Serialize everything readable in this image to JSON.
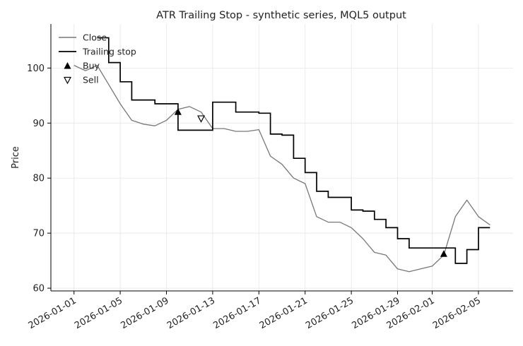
{
  "chart_data": {
    "type": "line",
    "title": "ATR Trailing Stop - synthetic series, MQL5 output",
    "xlabel": "",
    "ylabel": "Price",
    "xlim": [
      "2025-12-30",
      "2026-02-08"
    ],
    "ylim": [
      59.5,
      108
    ],
    "yticks": [
      60,
      70,
      80,
      90,
      100
    ],
    "xticks": [
      "2026-01-01",
      "2026-01-05",
      "2026-01-09",
      "2026-01-13",
      "2026-01-17",
      "2026-01-21",
      "2026-01-25",
      "2026-01-29",
      "2026-02-01",
      "2026-02-05"
    ],
    "grid": true,
    "legend_position": "top-left",
    "series": [
      {
        "name": "Close",
        "color": "#777777",
        "x": [
          "2026-01-01",
          "2026-01-02",
          "2026-01-03",
          "2026-01-04",
          "2026-01-05",
          "2026-01-06",
          "2026-01-07",
          "2026-01-08",
          "2026-01-09",
          "2026-01-10",
          "2026-01-11",
          "2026-01-12",
          "2026-01-13",
          "2026-01-14",
          "2026-01-15",
          "2026-01-16",
          "2026-01-17",
          "2026-01-18",
          "2026-01-19",
          "2026-01-20",
          "2026-01-21",
          "2026-01-22",
          "2026-01-23",
          "2026-01-24",
          "2026-01-25",
          "2026-01-26",
          "2026-01-27",
          "2026-01-28",
          "2026-01-29",
          "2026-01-30",
          "2026-01-31",
          "2026-02-01",
          "2026-02-02",
          "2026-02-03",
          "2026-02-04",
          "2026-02-05",
          "2026-02-06"
        ],
        "values": [
          100.5,
          99.5,
          100.5,
          97,
          93.5,
          90.5,
          89.8,
          89.5,
          90.5,
          92.5,
          93,
          92,
          89,
          89,
          88.5,
          88.5,
          88.8,
          84,
          82.5,
          80,
          79,
          73,
          72,
          72,
          71,
          69,
          66.5,
          66,
          63.5,
          63,
          63.5,
          64,
          66,
          73,
          76,
          73,
          71.5
        ]
      },
      {
        "name": "Trailing stop",
        "color": "#000000",
        "x": [
          "2026-01-03",
          "2026-01-04",
          "2026-01-05",
          "2026-01-06",
          "2026-01-07",
          "2026-01-08",
          "2026-01-09",
          "2026-01-10",
          "2026-01-11",
          "2026-01-12",
          "2026-01-13",
          "2026-01-14",
          "2026-01-15",
          "2026-01-16",
          "2026-01-17",
          "2026-01-18",
          "2026-01-19",
          "2026-01-20",
          "2026-01-21",
          "2026-01-22",
          "2026-01-23",
          "2026-01-24",
          "2026-01-25",
          "2026-01-26",
          "2026-01-27",
          "2026-01-28",
          "2026-01-29",
          "2026-01-30",
          "2026-01-31",
          "2026-02-01",
          "2026-02-02",
          "2026-02-03",
          "2026-02-04",
          "2026-02-05",
          "2026-02-06"
        ],
        "values": [
          105.5,
          101,
          97.5,
          94.2,
          94.2,
          93.5,
          93.5,
          88.7,
          88.7,
          88.7,
          93.8,
          93.8,
          92,
          92,
          91.8,
          88,
          87.8,
          83.6,
          81,
          77.6,
          76.5,
          76.5,
          74.2,
          74,
          72.5,
          71,
          69,
          67.3,
          67.3,
          67.3,
          67.3,
          64.5,
          67,
          71,
          71
        ]
      }
    ],
    "markers": [
      {
        "name": "Buy",
        "shape": "filled-triangle-up",
        "x": "2026-01-10",
        "y": 92,
        "color": "#000000"
      },
      {
        "name": "Sell",
        "shape": "open-triangle-down",
        "x": "2026-01-12",
        "y": 90.8,
        "color": "#000000"
      },
      {
        "name": "Buy",
        "shape": "filled-triangle-up",
        "x": "2026-02-02",
        "y": 66.2,
        "color": "#000000"
      }
    ]
  }
}
